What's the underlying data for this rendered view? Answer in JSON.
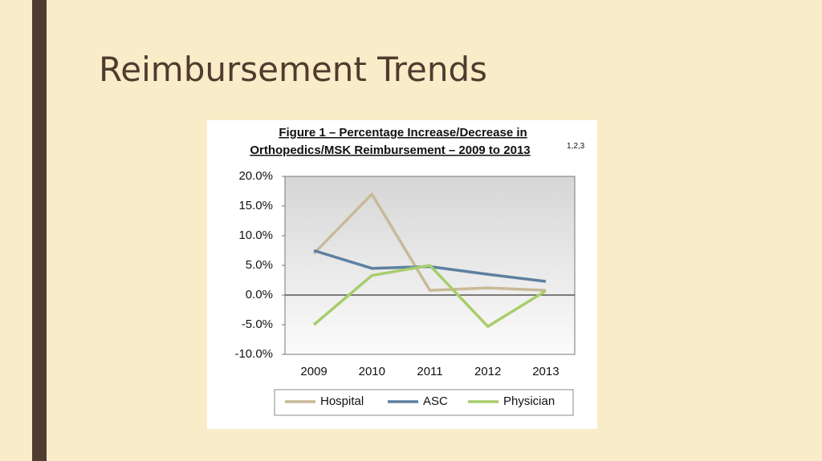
{
  "slide_title": "Reimbursement Trends",
  "chart_data": {
    "type": "line",
    "title": [
      "Figure 1 – Percentage Increase/Decrease in",
      "Orthopedics/MSK Reimbursement – 2009 to 2013"
    ],
    "title_superscript": "1,2,3",
    "categories": [
      "2009",
      "2010",
      "2011",
      "2012",
      "2013"
    ],
    "series": [
      {
        "name": "Hospital",
        "color": "#c9b998",
        "values": [
          7,
          17,
          0.8,
          1.2,
          0.8
        ]
      },
      {
        "name": "ASC",
        "color": "#5d80a0",
        "values": [
          7.5,
          4.5,
          4.8,
          3.5,
          2.3
        ]
      },
      {
        "name": "Physician",
        "color": "#a8cd6c",
        "values": [
          -5,
          3.3,
          5,
          -5.3,
          0.7
        ]
      }
    ],
    "ylim": [
      -10,
      20
    ],
    "yticks": [
      {
        "value": -10,
        "label": "-10.0%"
      },
      {
        "value": -5,
        "label": "-5.0%"
      },
      {
        "value": 0,
        "label": "0.0%"
      },
      {
        "value": 5,
        "label": "5.0%"
      },
      {
        "value": 10,
        "label": "10.0%"
      },
      {
        "value": 15,
        "label": "15.0%"
      },
      {
        "value": 20,
        "label": "20.0%"
      }
    ],
    "legend": "bottom"
  }
}
